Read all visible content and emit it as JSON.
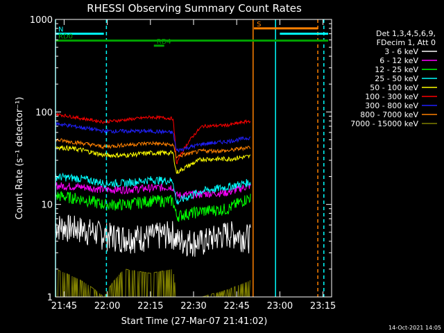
{
  "chart_data": {
    "type": "line",
    "title": "RHESSI Observing Summary Count Rates",
    "xlabel": "Start Time (27-Mar-07 21:41:02)",
    "ylabel": "Count Rate (s⁻¹ detector⁻¹)",
    "ylog": true,
    "ylim": [
      1,
      1000
    ],
    "xlim_minutes": [
      21.7,
      23.3
    ],
    "x_ticks": [
      "21:45",
      "22:00",
      "22:15",
      "22:30",
      "22:45",
      "23:00",
      "23:15"
    ],
    "x_tick_hours": [
      21.75,
      22.0,
      22.25,
      22.5,
      22.75,
      23.0,
      23.25
    ],
    "y_ticks": [
      "1",
      "10",
      "100",
      "1000"
    ],
    "y_tick_values": [
      1,
      10,
      100,
      1000
    ],
    "legend_header": [
      "Det 1,3,4,5,6,9,",
      "FDecim 1, Att 0"
    ],
    "legend_position": "right",
    "timestamp": "14-Oct-2021 14:05",
    "annotations": [
      {
        "label": "N",
        "color": "#00ffff",
        "start": 21.7,
        "end": 21.98,
        "level": 700
      },
      {
        "label": "RD0",
        "color": "#00a000",
        "start": 21.7,
        "end": 23.28,
        "level": 590
      },
      {
        "label": "RD4",
        "color": "#00a000",
        "start": 22.27,
        "end": 22.33,
        "level": 520
      },
      {
        "label": "S",
        "color": "#ff8000",
        "start": 22.85,
        "end": 23.22,
        "level": 800
      },
      {
        "label": "",
        "color": "#00ffff",
        "start": 23.0,
        "end": 23.28,
        "level": 700
      }
    ],
    "vlines": [
      {
        "x": 21.7,
        "color": "#00ffff",
        "style": "solid"
      },
      {
        "x": 21.995,
        "color": "#00ffff",
        "style": "dashed"
      },
      {
        "x": 22.845,
        "color": "#ff8000",
        "style": "solid"
      },
      {
        "x": 22.975,
        "color": "#00ffff",
        "style": "solid"
      },
      {
        "x": 23.22,
        "color": "#ff8000",
        "style": "dashed"
      },
      {
        "x": 23.255,
        "color": "#00ffff",
        "style": "dashed"
      }
    ],
    "series": [
      {
        "name": "3 - 6 keV",
        "color": "#ffffff",
        "values": [
          6.0,
          5.5,
          4.8,
          4.5,
          4.6,
          5.0,
          4.2,
          4.0,
          5.0,
          4.5
        ],
        "noise": 0.35
      },
      {
        "name": "6 - 12 keV",
        "color": "#ff00ff",
        "values": [
          16,
          15.5,
          14.5,
          14.5,
          15.0,
          15.5,
          12.5,
          13.0,
          13.5,
          16.0
        ],
        "noise": 0.1
      },
      {
        "name": "12 - 25 keV",
        "color": "#00ff00",
        "values": [
          12.5,
          11.5,
          10.0,
          10.0,
          11.0,
          11.0,
          7.5,
          8.5,
          9.0,
          12.0
        ],
        "noise": 0.15
      },
      {
        "name": "25 - 50 keV",
        "color": "#00ffff",
        "values": [
          20,
          19,
          17,
          17,
          18.5,
          18,
          10.5,
          14,
          15.5,
          17.5
        ],
        "noise": 0.1
      },
      {
        "name": "50 - 100 keV",
        "color": "#ffff00",
        "values": [
          42,
          39,
          34,
          34,
          36,
          36,
          22,
          31,
          31,
          33
        ],
        "noise": 0.06
      },
      {
        "name": "100 - 300 keV",
        "color": "#ff0000",
        "values": [
          95,
          85,
          78,
          82,
          88,
          85,
          27,
          70,
          72,
          80
        ],
        "noise": 0.04
      },
      {
        "name": "300 - 800 keV",
        "color": "#2020ff",
        "values": [
          75,
          68,
          62,
          62,
          62,
          60,
          38,
          45,
          48,
          53
        ],
        "noise": 0.05
      },
      {
        "name": "800 - 7000 keV",
        "color": "#ff8000",
        "values": [
          50,
          46,
          42,
          44,
          46,
          44,
          33,
          38,
          38,
          42
        ],
        "noise": 0.05
      },
      {
        "name": "7000 - 15000 keV",
        "color": "#808000",
        "values": [
          2.0,
          1.5,
          1.0,
          2.0,
          1.8,
          2.0,
          1.0,
          1.0,
          1.2,
          1.5
        ],
        "noise": 0.0
      }
    ],
    "series_x_hours": [
      21.7,
      21.85,
      21.98,
      22.1,
      22.25,
      22.38,
      22.4,
      22.55,
      22.7,
      22.83
    ]
  }
}
